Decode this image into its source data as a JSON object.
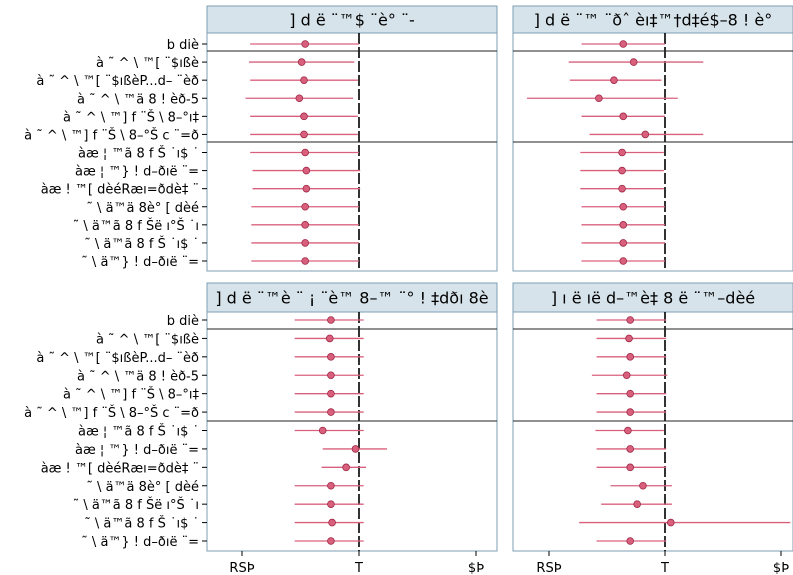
{
  "chart_data": {
    "type": "forest",
    "x_ticks": [
      {
        "label": "RSÞ",
        "value": -1
      },
      {
        "label": "T",
        "value": 0
      },
      {
        "label": "$Þ",
        "value": 1
      }
    ],
    "colors": {
      "point_fill": "#d9607d",
      "point_stroke": "#9e2846",
      "ci_line": "#d9607d",
      "header_bg": "#d6e3ea",
      "border": "#7c9fb5",
      "reference_line": "#000000"
    },
    "panels": [
      {
        "title": "] d ë ¨™$ ¨è° ¨-",
        "rows": [
          {
            "label": "b diè",
            "estimate": -0.46,
            "ci": [
              -0.93,
              0.0
            ]
          },
          {
            "label": "à ˜ ^ \\ ™[ ¨$ıßè",
            "estimate": -0.49,
            "ci": [
              -0.94,
              -0.04
            ]
          },
          {
            "label": "à ˜ ^ \\ ™[ ¨$ıßèP...d– ¨èð",
            "estimate": -0.47,
            "ci": [
              -0.93,
              -0.01
            ]
          },
          {
            "label": "à ˜ ^ \\ ™ä 8 ! èð-5",
            "estimate": -0.51,
            "ci": [
              -0.97,
              -0.05
            ]
          },
          {
            "label": "à ˜ ^ \\ ™] f ¨Š \\ 8–°ı‡",
            "estimate": -0.47,
            "ci": [
              -0.93,
              -0.01
            ]
          },
          {
            "label": "à ˜ ^ \\ ™] f ¨Š \\ 8–°Š c ¨=ð",
            "estimate": -0.47,
            "ci": [
              -0.93,
              -0.01
            ]
          },
          {
            "label": "àæ ¦ ™ã 8 f Š ˙ı$ ˙",
            "estimate": -0.46,
            "ci": [
              -0.93,
              0.0
            ]
          },
          {
            "label": "àæ ¦ ™} ! d–ðıë ¨=",
            "estimate": -0.45,
            "ci": [
              -0.91,
              0.01
            ]
          },
          {
            "label": "àæ ! ™[ dèéRæı=ðdè‡ ¨",
            "estimate": -0.45,
            "ci": [
              -0.91,
              0.01
            ]
          },
          {
            "label": "˜ \\ ä™ä 8è° [ dèé",
            "estimate": -0.46,
            "ci": [
              -0.92,
              0.0
            ]
          },
          {
            "label": "˜ \\ ä™ã 8 f Šë ı°Š ˙ı",
            "estimate": -0.46,
            "ci": [
              -0.92,
              0.0
            ]
          },
          {
            "label": "˜ \\ ä™ã 8 f Š ˙ı$ ˙",
            "estimate": -0.46,
            "ci": [
              -0.92,
              0.0
            ]
          },
          {
            "label": "˜ \\ ä™} ! d–ðıë ¨=",
            "estimate": -0.46,
            "ci": [
              -0.92,
              0.0
            ]
          }
        ]
      },
      {
        "title": "] d ë ¨™ ¨ðˆ èı‡™†d‡é$–8 ! è°",
        "rows": [
          {
            "label": "b diè",
            "estimate": -0.36,
            "ci": [
              -0.72,
              0.0
            ]
          },
          {
            "label": "à ˜ ^ \\ ™[ ¨$ıßè",
            "estimate": -0.27,
            "ci": [
              -0.83,
              0.33
            ]
          },
          {
            "label": "à ˜ ^ \\ ™[ ¨$ıßèP...d– ¨èð",
            "estimate": -0.44,
            "ci": [
              -0.82,
              -0.03
            ]
          },
          {
            "label": "à ˜ ^ \\ ™ä 8 ! èð-5",
            "estimate": -0.57,
            "ci": [
              -1.19,
              0.11
            ]
          },
          {
            "label": "à ˜ ^ \\ ™] f ¨Š \\ 8–°ı‡",
            "estimate": -0.36,
            "ci": [
              -0.72,
              0.0
            ]
          },
          {
            "label": "à ˜ ^ \\ ™] f ¨Š \\ 8–°Š c ¨=ð",
            "estimate": -0.17,
            "ci": [
              -0.65,
              0.33
            ]
          },
          {
            "label": "àæ ¦ ™ã 8 f Š ˙ı$ ˙",
            "estimate": -0.37,
            "ci": [
              -0.73,
              -0.01
            ]
          },
          {
            "label": "àæ ¦ ™} ! d–ðıë ¨=",
            "estimate": -0.37,
            "ci": [
              -0.73,
              -0.01
            ]
          },
          {
            "label": "àæ ! ™[ dèéRæı=ðdè‡ ¨",
            "estimate": -0.37,
            "ci": [
              -0.73,
              -0.01
            ]
          },
          {
            "label": "˜ \\ ä™ä 8è° [ dèé",
            "estimate": -0.36,
            "ci": [
              -0.72,
              0.0
            ]
          },
          {
            "label": "˜ \\ ä™ã 8 f Šë ı°Š ˙ı",
            "estimate": -0.36,
            "ci": [
              -0.72,
              0.0
            ]
          },
          {
            "label": "˜ \\ ä™ã 8 f Š ˙ı$ ˙",
            "estimate": -0.36,
            "ci": [
              -0.72,
              0.0
            ]
          },
          {
            "label": "˜ \\ ä™} ! d–ðıë ¨=",
            "estimate": -0.36,
            "ci": [
              -0.72,
              0.0
            ]
          }
        ]
      },
      {
        "title": "] d ë ¨™è ¨ ¡ ¨è™ 8–™ ¨° ! ‡dðı 8è",
        "rows": [
          {
            "label": "b diè",
            "estimate": -0.24,
            "ci": [
              -0.55,
              0.04
            ]
          },
          {
            "label": "à ˜ ^ \\ ™[ ¨$ıßè",
            "estimate": -0.25,
            "ci": [
              -0.55,
              0.04
            ]
          },
          {
            "label": "à ˜ ^ \\ ™[ ¨$ıßèP...d– ¨èð",
            "estimate": -0.24,
            "ci": [
              -0.55,
              0.04
            ]
          },
          {
            "label": "à ˜ ^ \\ ™ä 8 ! èð-5",
            "estimate": -0.24,
            "ci": [
              -0.55,
              0.04
            ]
          },
          {
            "label": "à ˜ ^ \\ ™] f ¨Š \\ 8–°ı‡",
            "estimate": -0.24,
            "ci": [
              -0.55,
              0.04
            ]
          },
          {
            "label": "à ˜ ^ \\ ™] f ¨Š \\ 8–°Š c ¨=ð",
            "estimate": -0.24,
            "ci": [
              -0.55,
              0.04
            ]
          },
          {
            "label": "àæ ¦ ™ã 8 f Š ˙ı$ ˙",
            "estimate": -0.31,
            "ci": [
              -0.55,
              0.04
            ]
          },
          {
            "label": "àæ ¦ ™} ! d–ðıë ¨=",
            "estimate": -0.03,
            "ci": [
              -0.31,
              0.24
            ]
          },
          {
            "label": "àæ ! ™[ dèéRæı=ðdè‡ ¨",
            "estimate": -0.11,
            "ci": [
              -0.32,
              0.06
            ]
          },
          {
            "label": "˜ \\ ä™ä 8è° [ dèé",
            "estimate": -0.24,
            "ci": [
              -0.55,
              0.04
            ]
          },
          {
            "label": "˜ \\ ä™ã 8 f Šë ı°Š ˙ı",
            "estimate": -0.24,
            "ci": [
              -0.55,
              0.04
            ]
          },
          {
            "label": "˜ \\ ä™ã 8 f Š ˙ı$ ˙",
            "estimate": -0.23,
            "ci": [
              -0.55,
              0.04
            ]
          },
          {
            "label": "˜ \\ ä™} ! d–ðıë ¨=",
            "estimate": -0.24,
            "ci": [
              -0.55,
              0.04
            ]
          }
        ]
      },
      {
        "title": "] ı ë ıë d–™è‡ 8 ë ¨™–dèé",
        "rows": [
          {
            "label": "b diè",
            "estimate": -0.3,
            "ci": [
              -0.59,
              0.01
            ]
          },
          {
            "label": "à ˜ ^ \\ ™[ ¨$ıßè",
            "estimate": -0.31,
            "ci": [
              -0.59,
              0.01
            ]
          },
          {
            "label": "à ˜ ^ \\ ™[ ¨$ıßèP...d– ¨èð",
            "estimate": -0.3,
            "ci": [
              -0.59,
              0.01
            ]
          },
          {
            "label": "à ˜ ^ \\ ™ä 8 ! èð-5",
            "estimate": -0.33,
            "ci": [
              -0.63,
              0.02
            ]
          },
          {
            "label": "à ˜ ^ \\ ™] f ¨Š \\ 8–°ı‡",
            "estimate": -0.3,
            "ci": [
              -0.59,
              0.01
            ]
          },
          {
            "label": "à ˜ ^ \\ ™] f ¨Š \\ 8–°Š c ¨=ð",
            "estimate": -0.3,
            "ci": [
              -0.59,
              0.01
            ]
          },
          {
            "label": "àæ ¦ ™ã 8 f Š ˙ı$ ˙",
            "estimate": -0.32,
            "ci": [
              -0.6,
              -0.01
            ]
          },
          {
            "label": "àæ ¦ ™} ! d–ðıë ¨=",
            "estimate": -0.3,
            "ci": [
              -0.59,
              0.01
            ]
          },
          {
            "label": "àæ ! ™[ dèéRæı=ðdè‡ ¨",
            "estimate": -0.3,
            "ci": [
              -0.59,
              0.01
            ]
          },
          {
            "label": "˜ \\ ä™ä 8è° [ dèé",
            "estimate": -0.19,
            "ci": [
              -0.47,
              0.06
            ]
          },
          {
            "label": "˜ \\ ä™ã 8 f Šë ı°Š ˙ı",
            "estimate": -0.24,
            "ci": [
              -0.55,
              0.06
            ]
          },
          {
            "label": "˜ \\ ä™ã 8 f Š ˙ı$ ˙",
            "estimate": 0.05,
            "ci": [
              -0.74,
              1.08
            ]
          },
          {
            "label": "˜ \\ ä™} ! d–ðıë ¨=",
            "estimate": -0.3,
            "ci": [
              -0.59,
              0.01
            ]
          }
        ]
      }
    ]
  }
}
